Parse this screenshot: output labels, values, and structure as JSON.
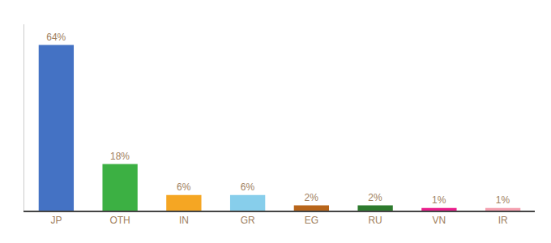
{
  "chart_data": {
    "type": "bar",
    "categories": [
      "JP",
      "OTH",
      "IN",
      "GR",
      "EG",
      "RU",
      "VN",
      "IR"
    ],
    "values": [
      64,
      18,
      6,
      6,
      2,
      2,
      1,
      1
    ],
    "value_labels": [
      "64%",
      "18%",
      "6%",
      "6%",
      "2%",
      "2%",
      "1%",
      "1%"
    ],
    "colors": [
      "#4472c4",
      "#3cb043",
      "#f5a623",
      "#87ceeb",
      "#b8651a",
      "#2d7a2d",
      "#e91e8c",
      "#f4a0b0"
    ],
    "ylim": [
      0,
      72
    ],
    "grid": false,
    "data_labels": true,
    "tick_labels": "x"
  }
}
